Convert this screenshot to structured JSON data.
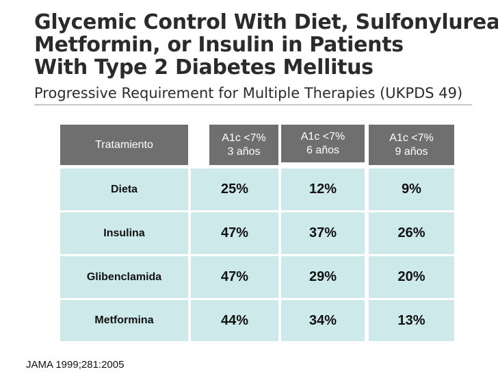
{
  "title_lines": [
    "Glycemic Control With Diet, Sulfonylurea,",
    "Metformin, or Insulin in Patients",
    "With Type 2 Diabetes Mellitus"
  ],
  "subtitle": "Progressive Requirement for Multiple Therapies (UKPDS 49)",
  "table": {
    "header": {
      "treatment": "Tratamiento",
      "cols": [
        {
          "line1": "A1c <7%",
          "line2": "3 años"
        },
        {
          "line1": "A1c <7%",
          "line2": "6 años"
        },
        {
          "line1": "A1c <7%",
          "line2": "9 años"
        }
      ]
    },
    "rows": [
      {
        "label": "Dieta",
        "values": [
          "25%",
          "12%",
          "9%"
        ]
      },
      {
        "label": "Insulina",
        "values": [
          "47%",
          "37%",
          "26%"
        ]
      },
      {
        "label": "Glibenclamida",
        "values": [
          "47%",
          "29%",
          "20%"
        ]
      },
      {
        "label": "Metformina",
        "values": [
          "44%",
          "34%",
          "13%"
        ]
      }
    ]
  },
  "source": "JAMA 1999;281:2005",
  "colors": {
    "header_bg": "#6f6f6f",
    "body_bg": "#cde9ea",
    "title_text": "#2b2b2b"
  }
}
